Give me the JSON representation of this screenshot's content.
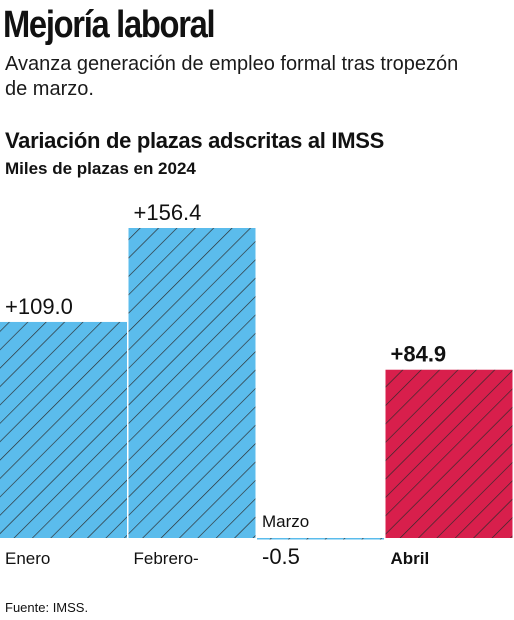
{
  "headline": "Mejoría laboral",
  "subhead": "Avanza generación de empleo formal tras tropezón de marzo.",
  "source": "Fuente: IMSS.",
  "colors": {
    "positive_bar": "#5bbcec",
    "highlight_bar": "#d81f4c",
    "hatch": "#2a2a2a"
  },
  "chart_data": {
    "type": "bar",
    "title": "Variación de plazas adscritas al IMSS",
    "subtitle": "Miles de plazas en 2024",
    "categories": [
      "Enero",
      "Febrero-",
      "Marzo",
      "Abril"
    ],
    "values": [
      109.0,
      156.4,
      -0.5,
      84.9
    ],
    "value_labels": [
      "+109.0",
      "+156.4",
      "-0.5",
      "+84.9"
    ],
    "highlight": "Abril",
    "grid": false,
    "legend": "none"
  }
}
